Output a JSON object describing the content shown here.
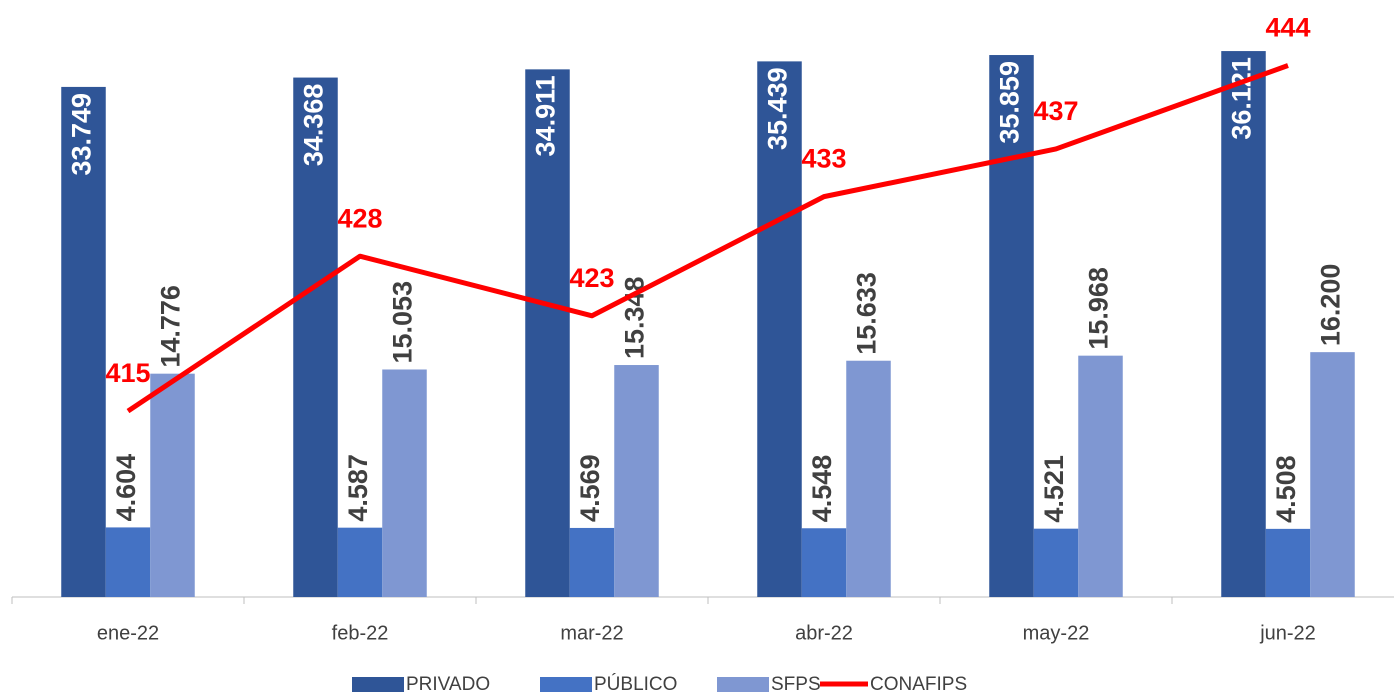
{
  "chart_data": {
    "type": "bar",
    "categories": [
      "ene-22",
      "feb-22",
      "mar-22",
      "abr-22",
      "may-22",
      "jun-22"
    ],
    "ylim": [
      0,
      39500
    ],
    "y2lim": [
      399.4,
      449.5
    ],
    "series": [
      {
        "name": "PRIVADO",
        "color": "#2f5597",
        "values": [
          33749,
          34368,
          34911,
          35439,
          35859,
          36121
        ],
        "value_labels": [
          "33.749",
          "34.368",
          "34.911",
          "35.439",
          "35.859",
          "36.121"
        ]
      },
      {
        "name": "PÚBLICO",
        "color": "#4472c4",
        "values": [
          4604,
          4587,
          4569,
          4548,
          4521,
          4508
        ],
        "value_labels": [
          "4.604",
          "4.587",
          "4.569",
          "4.548",
          "4.521",
          "4.508"
        ]
      },
      {
        "name": "SFPS",
        "color": "#7f97d2",
        "values": [
          14776,
          15053,
          15348,
          15633,
          15968,
          16200
        ],
        "value_labels": [
          "14.776",
          "15.053",
          "15.348",
          "15.633",
          "15.968",
          "16.200"
        ]
      },
      {
        "name": "CONAFIPS",
        "type": "line",
        "axis": "y2",
        "color": "#ff0000",
        "values": [
          415,
          428,
          423,
          433,
          437,
          444
        ]
      }
    ]
  }
}
